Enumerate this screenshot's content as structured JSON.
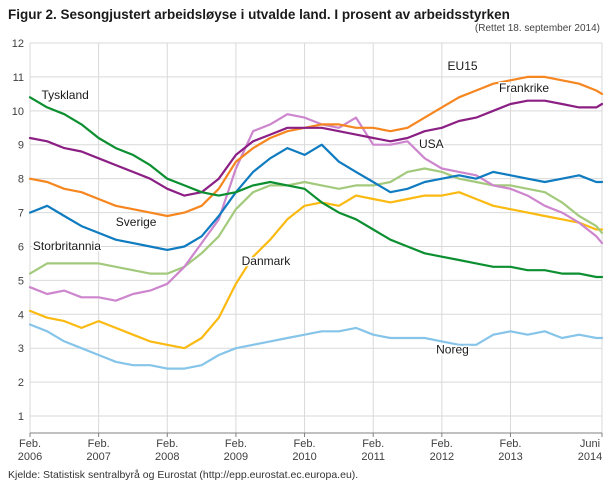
{
  "header": {
    "title": "Figur 2. Sesongjustert arbeidsløyse i utvalde land. I prosent av arbeidsstyrken",
    "revision_note": "(Rettet 18. september 2014)"
  },
  "footer": {
    "source": "Kjelde: Statistisk sentralbyrå og Eurostat (http://epp.eurostat.ec.europa.eu)."
  },
  "chart_data": {
    "type": "line",
    "title": "Figur 2. Sesongjustert arbeidsløyse i utvalde land. I prosent av arbeidsstyrken",
    "xlabel": "",
    "ylabel": "",
    "ylim": [
      0.5,
      12
    ],
    "y_ticks": [
      1,
      2,
      3,
      4,
      5,
      6,
      7,
      8,
      9,
      10,
      11,
      12
    ],
    "grid": true,
    "legend": "inline-annotations",
    "x_unit": "months_since_feb_2006",
    "x": [
      0,
      3,
      6,
      9,
      12,
      15,
      18,
      21,
      24,
      27,
      30,
      33,
      36,
      39,
      42,
      45,
      48,
      51,
      54,
      57,
      60,
      63,
      66,
      69,
      72,
      75,
      78,
      81,
      84,
      87,
      90,
      93,
      96,
      99,
      100
    ],
    "x_ticks": [
      {
        "month": 0,
        "line1": "Feb.",
        "line2": "2006"
      },
      {
        "month": 12,
        "line1": "Feb.",
        "line2": "2007"
      },
      {
        "month": 24,
        "line1": "Feb.",
        "line2": "2008"
      },
      {
        "month": 36,
        "line1": "Feb.",
        "line2": "2009"
      },
      {
        "month": 48,
        "line1": "Feb.",
        "line2": "2010"
      },
      {
        "month": 60,
        "line1": "Feb.",
        "line2": "2011"
      },
      {
        "month": 72,
        "line1": "Feb.",
        "line2": "2012"
      },
      {
        "month": 84,
        "line1": "Feb.",
        "line2": "2013"
      },
      {
        "month": 100,
        "line1": "Juni",
        "line2": "2014"
      }
    ],
    "colors": {
      "grid": "#d9d9d9",
      "axis": "#808080",
      "tick_text": "#404040",
      "annotation_text": "#1a1a1a"
    },
    "series": [
      {
        "name": "Noreg",
        "color": "#86c5e9",
        "values": [
          3.7,
          3.5,
          3.2,
          3.0,
          2.8,
          2.6,
          2.5,
          2.5,
          2.4,
          2.4,
          2.5,
          2.8,
          3.0,
          3.1,
          3.2,
          3.3,
          3.4,
          3.5,
          3.5,
          3.6,
          3.4,
          3.3,
          3.3,
          3.3,
          3.2,
          3.1,
          3.1,
          3.4,
          3.5,
          3.4,
          3.5,
          3.3,
          3.4,
          3.3,
          3.3
        ],
        "label": {
          "text": "Noreg",
          "month": 71,
          "value": 2.85
        }
      },
      {
        "name": "Danmark",
        "color": "#fbba12",
        "values": [
          4.1,
          3.9,
          3.8,
          3.6,
          3.8,
          3.6,
          3.4,
          3.2,
          3.1,
          3.0,
          3.3,
          3.9,
          4.9,
          5.7,
          6.2,
          6.8,
          7.2,
          7.3,
          7.2,
          7.5,
          7.4,
          7.3,
          7.4,
          7.5,
          7.5,
          7.6,
          7.4,
          7.2,
          7.1,
          7.0,
          6.9,
          6.8,
          6.7,
          6.5,
          6.5
        ],
        "label": {
          "text": "Danmark",
          "month": 37,
          "value": 5.45
        }
      },
      {
        "name": "Storbritannia",
        "color": "#a3ca7c",
        "values": [
          5.2,
          5.5,
          5.5,
          5.5,
          5.5,
          5.4,
          5.3,
          5.2,
          5.2,
          5.4,
          5.8,
          6.3,
          7.1,
          7.6,
          7.8,
          7.8,
          7.9,
          7.8,
          7.7,
          7.8,
          7.8,
          7.9,
          8.2,
          8.3,
          8.2,
          8.0,
          7.9,
          7.8,
          7.8,
          7.7,
          7.6,
          7.3,
          6.9,
          6.6,
          6.4
        ],
        "label": {
          "text": "Storbritannia",
          "month": 0.5,
          "value": 5.9
        }
      },
      {
        "name": "USA",
        "color": "#cd86cd",
        "values": [
          4.8,
          4.6,
          4.7,
          4.5,
          4.5,
          4.4,
          4.6,
          4.7,
          4.9,
          5.4,
          6.1,
          6.8,
          8.3,
          9.4,
          9.6,
          9.9,
          9.8,
          9.6,
          9.5,
          9.8,
          9.0,
          9.0,
          9.1,
          8.6,
          8.3,
          8.2,
          8.1,
          7.8,
          7.7,
          7.5,
          7.2,
          7.0,
          6.7,
          6.3,
          6.1
        ],
        "label": {
          "text": "USA",
          "month": 68,
          "value": 8.9
        }
      },
      {
        "name": "EU15",
        "color": "#f6861f",
        "values": [
          8.0,
          7.9,
          7.7,
          7.6,
          7.4,
          7.2,
          7.1,
          7.0,
          6.9,
          7.0,
          7.2,
          7.7,
          8.5,
          8.9,
          9.2,
          9.4,
          9.5,
          9.6,
          9.6,
          9.5,
          9.5,
          9.4,
          9.5,
          9.8,
          10.1,
          10.4,
          10.6,
          10.8,
          10.9,
          11.0,
          11.0,
          10.9,
          10.8,
          10.6,
          10.5
        ],
        "label": {
          "text": "EU15",
          "month": 73,
          "value": 11.2
        }
      },
      {
        "name": "Frankrike",
        "color": "#8b1f84",
        "values": [
          9.2,
          9.1,
          8.9,
          8.8,
          8.6,
          8.4,
          8.2,
          8.0,
          7.7,
          7.5,
          7.6,
          8.0,
          8.7,
          9.1,
          9.3,
          9.5,
          9.5,
          9.5,
          9.4,
          9.3,
          9.2,
          9.1,
          9.2,
          9.4,
          9.5,
          9.7,
          9.8,
          10.0,
          10.2,
          10.3,
          10.3,
          10.2,
          10.1,
          10.1,
          10.2
        ],
        "label": {
          "text": "Frankrike",
          "month": 82,
          "value": 10.55
        }
      },
      {
        "name": "Sverige",
        "color": "#0f7bc0",
        "values": [
          7.0,
          7.2,
          6.9,
          6.6,
          6.4,
          6.2,
          6.1,
          6.0,
          5.9,
          6.0,
          6.3,
          6.9,
          7.6,
          8.2,
          8.6,
          8.9,
          8.7,
          9.0,
          8.5,
          8.2,
          7.9,
          7.6,
          7.7,
          7.9,
          8.0,
          8.1,
          8.0,
          8.2,
          8.1,
          8.0,
          7.9,
          8.0,
          8.1,
          7.9,
          7.9
        ],
        "label": {
          "text": "Sverige",
          "month": 15,
          "value": 6.6
        }
      },
      {
        "name": "Tyskland",
        "color": "#0c8f30",
        "values": [
          10.4,
          10.1,
          9.9,
          9.6,
          9.2,
          8.9,
          8.7,
          8.4,
          8.0,
          7.8,
          7.6,
          7.5,
          7.6,
          7.8,
          7.9,
          7.8,
          7.7,
          7.3,
          7.0,
          6.8,
          6.5,
          6.2,
          6.0,
          5.8,
          5.7,
          5.6,
          5.5,
          5.4,
          5.4,
          5.3,
          5.3,
          5.2,
          5.2,
          5.1,
          5.1
        ],
        "label": {
          "text": "Tyskland",
          "month": 2,
          "value": 10.35
        }
      }
    ]
  }
}
